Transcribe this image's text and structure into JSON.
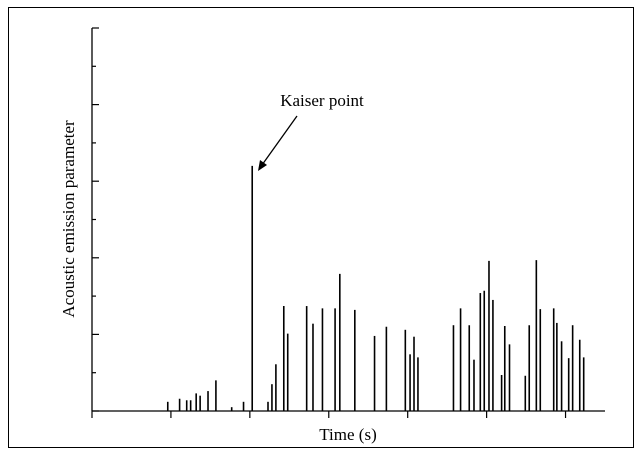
{
  "chart_data": {
    "type": "stem",
    "x_label": "Time (s)",
    "y_label": "Acoustic emission parameter",
    "annotation": "Kaiser point",
    "color": "#000000",
    "x": [
      0.96,
      1.11,
      1.2,
      1.25,
      1.32,
      1.37,
      1.47,
      1.57,
      1.77,
      1.92,
      2.03,
      2.23,
      2.28,
      2.33,
      2.43,
      2.48,
      2.72,
      2.8,
      2.92,
      3.08,
      3.14,
      3.33,
      3.58,
      3.73,
      3.97,
      4.03,
      4.08,
      4.13,
      4.58,
      4.67,
      4.78,
      4.84,
      4.92,
      4.97,
      5.03,
      5.08,
      5.19,
      5.23,
      5.29,
      5.49,
      5.54,
      5.63,
      5.68,
      5.85,
      5.89,
      5.95,
      6.04,
      6.09,
      6.18,
      6.23
    ],
    "values": [
      0.12,
      0.16,
      0.14,
      0.14,
      0.23,
      0.2,
      0.26,
      0.4,
      0.05,
      0.12,
      3.2,
      0.12,
      0.35,
      0.61,
      1.37,
      1.01,
      1.37,
      1.14,
      1.34,
      1.34,
      1.79,
      1.32,
      0.98,
      1.1,
      1.06,
      0.74,
      0.97,
      0.7,
      1.12,
      1.34,
      1.12,
      0.67,
      1.54,
      1.57,
      1.96,
      1.45,
      0.47,
      1.11,
      0.87,
      0.46,
      1.12,
      1.97,
      1.33,
      1.34,
      1.15,
      0.91,
      0.69,
      1.12,
      0.93,
      0.7
    ],
    "xlim": [
      0,
      6.5
    ],
    "xticks": [
      0,
      1,
      2,
      3,
      4,
      5,
      6
    ],
    "ylim": [
      0,
      5
    ],
    "yticks": [
      0,
      0.5,
      1,
      1.5,
      2,
      2.5,
      3,
      3.5,
      4,
      4.5,
      5
    ]
  }
}
